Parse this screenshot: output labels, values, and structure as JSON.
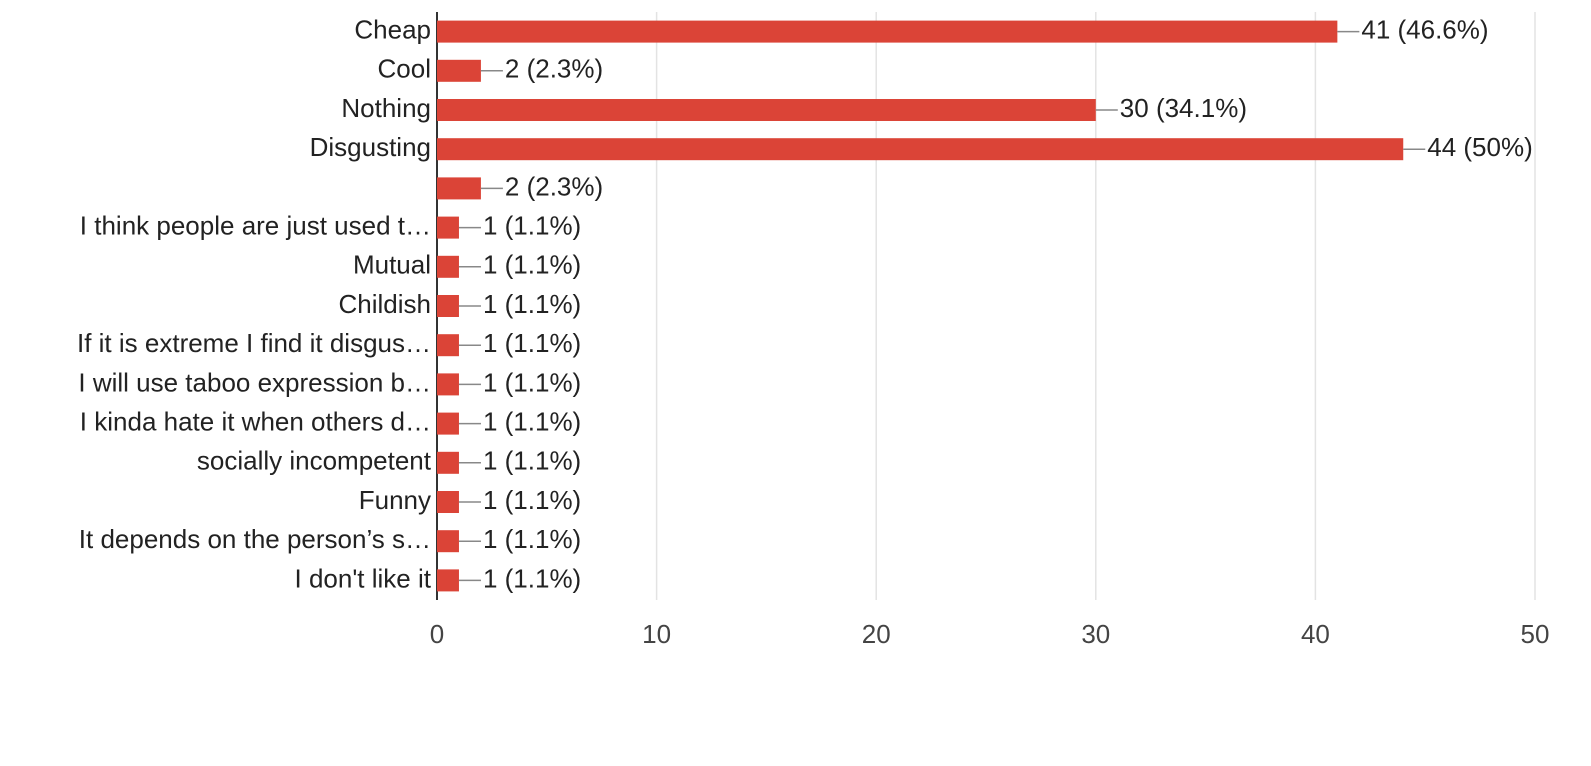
{
  "chart_data": {
    "type": "hbar",
    "categories": [
      "Cheap",
      "Cool",
      "Nothing",
      "Disgusting",
      null,
      "I think people are just used t…",
      "Mutual",
      "Childish",
      "If it is extreme I find it disgus…",
      "I will use taboo expression b…",
      "I kinda hate it when others d…",
      "socially incompetent",
      "Funny",
      "It depends on the person’s s…",
      "I don't like it"
    ],
    "values": [
      41,
      2,
      30,
      44,
      2,
      1,
      1,
      1,
      1,
      1,
      1,
      1,
      1,
      1,
      1
    ],
    "value_labels": [
      "41 (46.6%)",
      "2 (2.3%)",
      "30 (34.1%)",
      "44 (50%)",
      "2 (2.3%)",
      "1 (1.1%)",
      "1 (1.1%)",
      "1 (1.1%)",
      "1 (1.1%)",
      "1 (1.1%)",
      "1 (1.1%)",
      "1 (1.1%)",
      "1 (1.1%)",
      "1 (1.1%)",
      "1 (1.1%)"
    ],
    "color": "#db4437",
    "xlim": [
      0,
      50
    ],
    "xticks": [
      0,
      10,
      20,
      30,
      40,
      50
    ],
    "grid": true
  }
}
